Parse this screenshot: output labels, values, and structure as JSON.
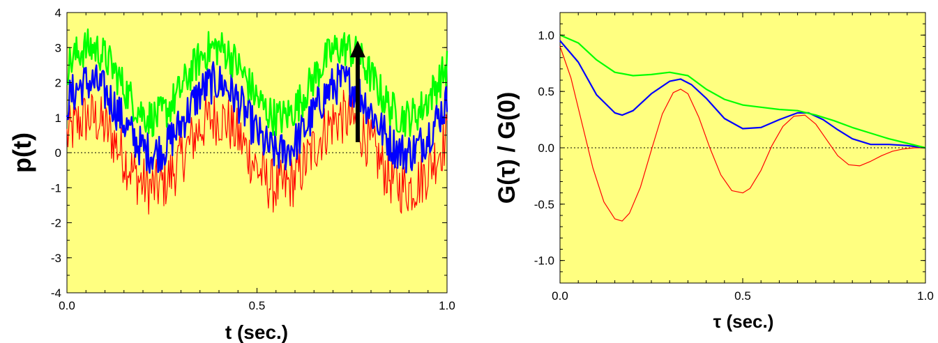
{
  "colors": {
    "plot_bg": "#ffff80",
    "green": "#00ff00",
    "blue": "#0000ff",
    "red": "#ff0000",
    "zero_line": "#000000"
  },
  "chart_data": [
    {
      "type": "line",
      "title": "",
      "xlabel": "t  (sec.)",
      "ylabel": "p(t)",
      "xlim": [
        0.0,
        1.0
      ],
      "ylim": [
        -4,
        4
      ],
      "xticks": [
        "0.0",
        "0.5",
        "1.0"
      ],
      "yticks": [
        "4",
        "3",
        "2",
        "1",
        "0",
        "-1",
        "-2",
        "-3",
        "-4"
      ],
      "zero_line": true,
      "annotation": "upward-arrow",
      "arrow": {
        "x": 0.765,
        "y_from": 0.3,
        "y_to": 3.0
      },
      "series": [
        {
          "color": "#00ff00",
          "offset": 2.0,
          "amplitude": 1.0,
          "frequency_hz": 3.0,
          "noise": 0.55
        },
        {
          "color": "#0000ff",
          "offset": 1.0,
          "amplitude": 1.0,
          "frequency_hz": 3.0,
          "noise": 0.6
        },
        {
          "color": "#ff0000",
          "offset": 0.0,
          "amplitude": 1.0,
          "frequency_hz": 3.0,
          "noise": 0.8
        }
      ]
    },
    {
      "type": "line",
      "title": "",
      "xlabel": "τ  (sec.)",
      "ylabel": "G(τ) / G(0)",
      "xlim": [
        0.0,
        1.0
      ],
      "ylim": [
        -1.2,
        1.2
      ],
      "xticks": [
        "0.0",
        "0.5",
        "1.0"
      ],
      "yticks": [
        "1.0",
        "0.5",
        "0.0",
        "-0.5",
        "-1.0"
      ],
      "zero_line": true,
      "series": [
        {
          "color": "#00ff00",
          "x": [
            0.0,
            0.05,
            0.1,
            0.15,
            0.2,
            0.25,
            0.3,
            0.35,
            0.4,
            0.45,
            0.5,
            0.55,
            0.6,
            0.65,
            0.7,
            0.75,
            0.8,
            0.85,
            0.9,
            0.95,
            1.0
          ],
          "y": [
            1.0,
            0.93,
            0.78,
            0.67,
            0.64,
            0.65,
            0.67,
            0.64,
            0.52,
            0.43,
            0.38,
            0.36,
            0.34,
            0.33,
            0.29,
            0.24,
            0.18,
            0.13,
            0.08,
            0.04,
            0.0
          ]
        },
        {
          "color": "#0000ff",
          "x": [
            0.0,
            0.05,
            0.1,
            0.15,
            0.17,
            0.2,
            0.25,
            0.3,
            0.33,
            0.36,
            0.4,
            0.45,
            0.5,
            0.55,
            0.6,
            0.65,
            0.68,
            0.72,
            0.76,
            0.8,
            0.85,
            0.9,
            0.95,
            1.0
          ],
          "y": [
            0.95,
            0.76,
            0.47,
            0.31,
            0.29,
            0.33,
            0.48,
            0.59,
            0.61,
            0.56,
            0.44,
            0.26,
            0.17,
            0.18,
            0.25,
            0.31,
            0.31,
            0.25,
            0.16,
            0.08,
            0.03,
            0.03,
            0.02,
            0.0
          ]
        },
        {
          "color": "#ff0000",
          "x": [
            0.0,
            0.03,
            0.06,
            0.09,
            0.12,
            0.15,
            0.17,
            0.19,
            0.22,
            0.25,
            0.28,
            0.31,
            0.33,
            0.35,
            0.38,
            0.41,
            0.44,
            0.47,
            0.5,
            0.52,
            0.55,
            0.58,
            0.61,
            0.64,
            0.67,
            0.7,
            0.73,
            0.76,
            0.79,
            0.82,
            0.85,
            0.88,
            0.91,
            0.94,
            0.97,
            1.0
          ],
          "y": [
            0.9,
            0.62,
            0.22,
            -0.18,
            -0.48,
            -0.63,
            -0.65,
            -0.58,
            -0.35,
            -0.02,
            0.3,
            0.49,
            0.52,
            0.48,
            0.27,
            0.0,
            -0.24,
            -0.38,
            -0.4,
            -0.36,
            -0.2,
            0.02,
            0.19,
            0.28,
            0.29,
            0.21,
            0.07,
            -0.07,
            -0.15,
            -0.16,
            -0.12,
            -0.07,
            -0.03,
            -0.01,
            0.0,
            0.0
          ]
        }
      ]
    }
  ]
}
